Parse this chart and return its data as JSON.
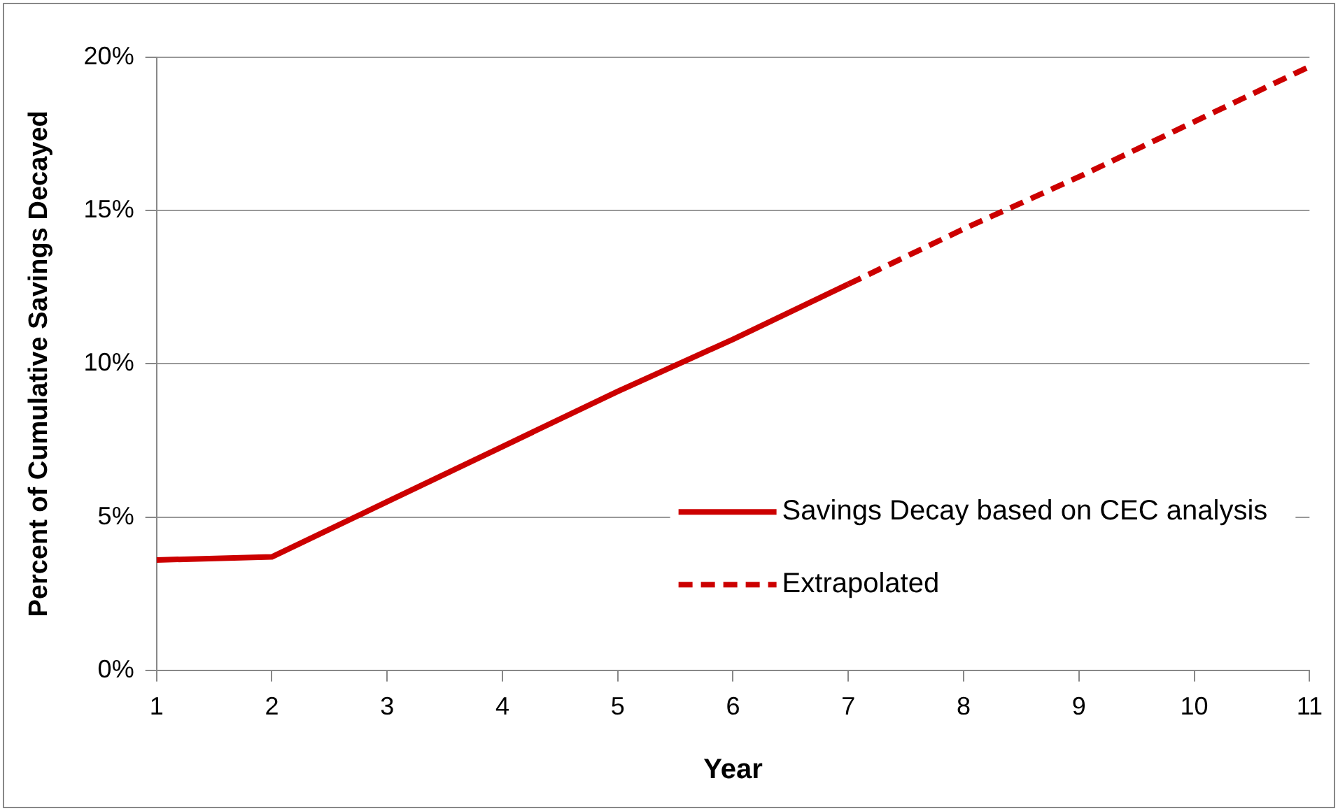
{
  "chart_data": {
    "type": "line",
    "xlabel": "Year",
    "ylabel": "Percent of Cumulative Savings Decayed",
    "xlim": [
      1,
      11
    ],
    "xticks": [
      1,
      2,
      3,
      4,
      5,
      6,
      7,
      8,
      9,
      10,
      11
    ],
    "ylim": [
      0,
      20
    ],
    "yticks": [
      {
        "value": 0,
        "label": "0%"
      },
      {
        "value": 5,
        "label": "5%"
      },
      {
        "value": 10,
        "label": "10%"
      },
      {
        "value": 15,
        "label": "15%"
      },
      {
        "value": 20,
        "label": "20%"
      }
    ],
    "grid": "y",
    "legend": "right",
    "marker": "none",
    "series": [
      {
        "name": "Savings Decay based on CEC analysis",
        "color": "#cc0000",
        "line_style": "solid",
        "x": [
          1,
          2,
          3,
          4,
          5,
          6,
          7
        ],
        "values": [
          3.6,
          3.7,
          5.5,
          7.3,
          9.1,
          10.8,
          12.6
        ]
      },
      {
        "name": "Extrapolated",
        "color": "#cc0000",
        "line_style": "dashed",
        "x": [
          7,
          8,
          9,
          10,
          11
        ],
        "values": [
          12.6,
          14.4,
          16.1,
          17.9,
          19.7
        ]
      }
    ]
  }
}
